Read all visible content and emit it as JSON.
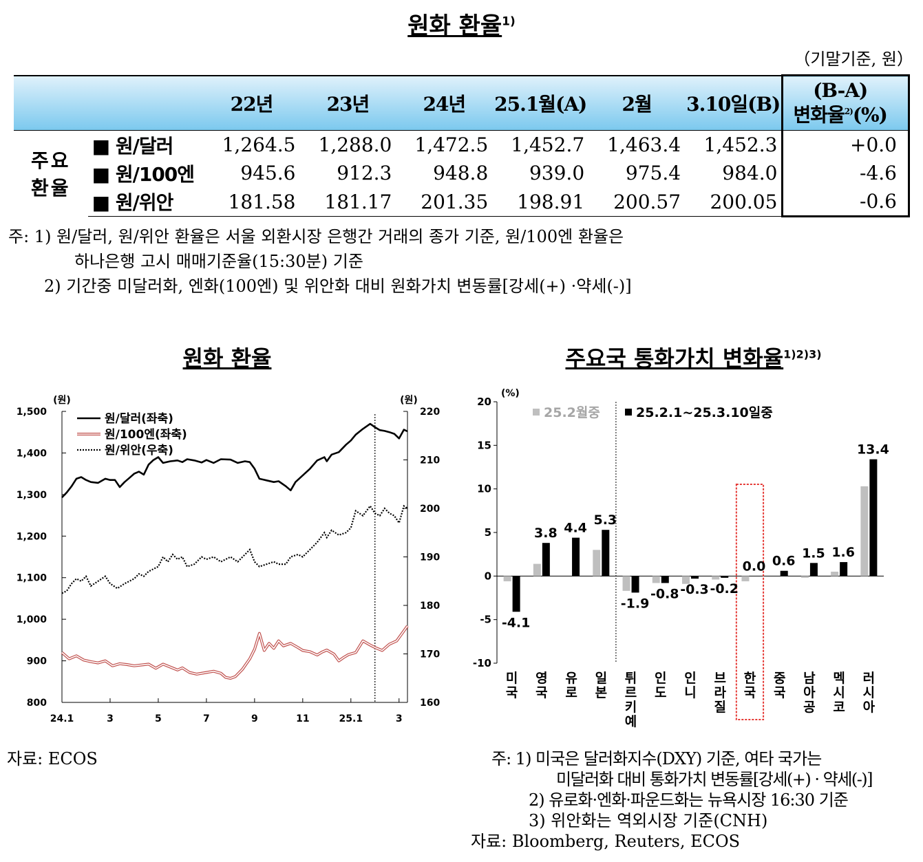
{
  "title": {
    "text": "원화 환율",
    "sup": "1)"
  },
  "unit": "（기말기준, 원）",
  "table": {
    "headers": [
      "22년",
      "23년",
      "24년",
      "25.1월(A)",
      "2월",
      "3.10일(B)"
    ],
    "change_header": [
      "(B-A)",
      "변화율",
      "2)",
      "(%)"
    ],
    "group_label": [
      "주요",
      "환율"
    ],
    "rows": [
      {
        "label": "■ 원/달러",
        "values": [
          "1,264.5",
          "1,288.0",
          "1,472.5",
          "1,452.7",
          "1,463.4",
          "1,452.3"
        ],
        "change": "+0.0"
      },
      {
        "label": "■ 원/100엔",
        "values": [
          "945.6",
          "912.3",
          "948.8",
          "939.0",
          "975.4",
          "984.0"
        ],
        "change": "-4.6"
      },
      {
        "label": "■ 원/위안",
        "values": [
          "181.58",
          "181.17",
          "201.35",
          "198.91",
          "200.57",
          "200.05"
        ],
        "change": "-0.6"
      }
    ]
  },
  "notes": [
    "주: 1) 원/달러, 원/위안 환율은 서울 외환시장 은행간 거래의 종가 기준, 원/100엔 환율은",
    "하나은행 고시 매매기준율(15:30분) 기준",
    "2) 기간중 미달러화, 엔화(100엔) 및 위안화 대비 원화가치 변동률[강세(+) ·약세(-)]"
  ],
  "left_chart": {
    "title": "원화 환율",
    "source": "자료: ECOS"
  },
  "right_chart": {
    "title": "주요국 통화가치 변화율",
    "title_sup": "1)2)3)",
    "notes": [
      "주: 1) 미국은 달러화지수(DXY) 기준, 여타 국가는",
      "미달러화 대비 통화가치 변동률[강세(+) · 약세(-)]",
      "2) 유로화·엔화·파운드화는 뉴욕시장 16:30 기준",
      "3) 위안화는 역외시장 기준(CNH)",
      "자료: Bloomberg, Reuters, ECOS"
    ]
  },
  "chart_data": [
    {
      "type": "line",
      "title": "원화 환율",
      "ylabel_left": "(원)",
      "ylabel_right": "(원)",
      "ylim_left": [
        800,
        1500
      ],
      "ylim_right": [
        160,
        220
      ],
      "yticks_left": [
        "800",
        "900",
        "1,000",
        "1,100",
        "1,200",
        "1,300",
        "1,400",
        "1,500"
      ],
      "yticks_right": [
        "160",
        "170",
        "180",
        "190",
        "200",
        "210",
        "220"
      ],
      "xticks": [
        "24.1",
        "3",
        "5",
        "7",
        "9",
        "11",
        "25.1",
        "3"
      ],
      "x_start": 0,
      "x_end": 14.35,
      "vline_at": 13,
      "grid": false,
      "legend_position": "top-left",
      "series": [
        {
          "name": "원/달러(좌축)",
          "axis": "left",
          "style": "solid",
          "color": "#000000",
          "x": [
            0,
            0.2,
            0.4,
            0.6,
            0.8,
            1.0,
            1.2,
            1.5,
            1.8,
            2.0,
            2.2,
            2.4,
            2.6,
            2.8,
            3.0,
            3.2,
            3.4,
            3.6,
            3.8,
            4.0,
            4.2,
            4.5,
            4.8,
            5.0,
            5.2,
            5.5,
            5.8,
            6.0,
            6.3,
            6.6,
            7.0,
            7.3,
            7.6,
            7.8,
            8.0,
            8.2,
            8.5,
            8.8,
            9.0,
            9.3,
            9.5,
            9.7,
            10.0,
            10.3,
            10.6,
            10.9,
            11.0,
            11.2,
            11.5,
            11.8,
            12.0,
            12.2,
            12.5,
            12.8,
            13.0,
            13.2,
            13.4,
            13.6,
            13.8,
            14.0,
            14.2,
            14.35
          ],
          "values": [
            1293,
            1305,
            1320,
            1338,
            1342,
            1335,
            1330,
            1328,
            1338,
            1335,
            1335,
            1318,
            1330,
            1340,
            1350,
            1355,
            1348,
            1372,
            1383,
            1390,
            1376,
            1380,
            1382,
            1378,
            1385,
            1382,
            1377,
            1383,
            1376,
            1385,
            1384,
            1376,
            1380,
            1378,
            1362,
            1338,
            1334,
            1330,
            1332,
            1320,
            1310,
            1330,
            1346,
            1362,
            1382,
            1390,
            1380,
            1396,
            1402,
            1420,
            1430,
            1444,
            1458,
            1470,
            1462,
            1455,
            1453,
            1450,
            1446,
            1435,
            1456,
            1452
          ]
        },
        {
          "name": "원/100엔(좌축)",
          "axis": "left",
          "style": "double",
          "color": "#c0504d",
          "x": [
            0,
            0.3,
            0.6,
            0.9,
            1.2,
            1.5,
            1.8,
            2.1,
            2.4,
            2.7,
            3.0,
            3.3,
            3.6,
            3.9,
            4.2,
            4.5,
            4.8,
            5.0,
            5.3,
            5.6,
            6.0,
            6.3,
            6.6,
            6.8,
            7.0,
            7.2,
            7.5,
            7.8,
            8.0,
            8.2,
            8.4,
            8.6,
            8.8,
            9.0,
            9.2,
            9.5,
            9.8,
            10.0,
            10.3,
            10.6,
            10.8,
            11.0,
            11.3,
            11.5,
            11.7,
            11.9,
            12.2,
            12.5,
            12.8,
            13.0,
            13.3,
            13.6,
            13.9,
            14.2,
            14.35
          ],
          "values": [
            920,
            905,
            912,
            902,
            898,
            895,
            900,
            888,
            893,
            891,
            888,
            890,
            892,
            882,
            892,
            885,
            878,
            883,
            872,
            868,
            872,
            875,
            870,
            860,
            858,
            862,
            880,
            905,
            928,
            966,
            925,
            942,
            930,
            948,
            936,
            942,
            932,
            925,
            922,
            914,
            921,
            926,
            916,
            900,
            908,
            915,
            920,
            948,
            938,
            932,
            925,
            940,
            948,
            972,
            984
          ]
        },
        {
          "name": "원/위안(우축)",
          "axis": "right",
          "style": "dotted",
          "color": "#000000",
          "x": [
            0,
            0.2,
            0.4,
            0.6,
            0.8,
            1.0,
            1.2,
            1.5,
            1.8,
            2.0,
            2.3,
            2.6,
            2.8,
            3.0,
            3.2,
            3.4,
            3.6,
            3.8,
            4.0,
            4.2,
            4.4,
            4.6,
            4.8,
            5.0,
            5.2,
            5.5,
            5.8,
            6.0,
            6.3,
            6.6,
            7.0,
            7.3,
            7.6,
            7.8,
            8.0,
            8.2,
            8.5,
            8.8,
            9.0,
            9.3,
            9.5,
            9.8,
            10.0,
            10.3,
            10.6,
            10.9,
            11.0,
            11.2,
            11.5,
            11.8,
            12.0,
            12.2,
            12.5,
            12.8,
            13.0,
            13.2,
            13.4,
            13.6,
            13.8,
            14.0,
            14.2,
            14.35
          ],
          "values": [
            182.5,
            183,
            184.5,
            185.5,
            185,
            186,
            184,
            185,
            186,
            184.5,
            183.5,
            184.5,
            185,
            185.5,
            186.5,
            186,
            187,
            187.5,
            188,
            190,
            189,
            190.5,
            189.5,
            190,
            188,
            188.5,
            190,
            189.5,
            190,
            189,
            190,
            189,
            190.5,
            191.5,
            189,
            188,
            188.5,
            189,
            188.5,
            188.5,
            190,
            190.5,
            190,
            191.5,
            193,
            195,
            194,
            195.5,
            194.5,
            195,
            196,
            199.5,
            198.5,
            200.5,
            199,
            198.5,
            200,
            199,
            198.5,
            197,
            200.5,
            200
          ]
        }
      ]
    },
    {
      "type": "bar",
      "title": "주요국 통화가치 변화율",
      "ylabel": "(%)",
      "ylim": [
        -10,
        20
      ],
      "yticks": [
        "-10",
        "-5",
        "0",
        "5",
        "10",
        "15",
        "20"
      ],
      "categories": [
        "미국",
        "영국",
        "유로",
        "일본",
        "튀르키예",
        "인도",
        "인니",
        "브라질",
        "한국",
        "중국",
        "남아공",
        "멕시코",
        "러시아"
      ],
      "legend_position": "top",
      "separator_after_index": 3,
      "highlight_category": "한국",
      "series": [
        {
          "name": "25.2월중",
          "color": "#bfbfbf",
          "values": [
            -0.6,
            1.4,
            0.0,
            3.0,
            -1.7,
            -0.8,
            -0.9,
            -0.4,
            -0.6,
            0.0,
            -0.2,
            0.5,
            10.3
          ]
        },
        {
          "name": "25.2.1~25.3.10일중",
          "color": "#000000",
          "values": [
            -4.1,
            3.8,
            4.4,
            5.3,
            -1.9,
            -0.8,
            -0.3,
            -0.2,
            0.0,
            0.6,
            1.5,
            1.6,
            13.4
          ]
        }
      ],
      "data_labels": [
        "-4.1",
        "3.8",
        "4.4",
        "5.3",
        "-1.9",
        "-0.8",
        "-0.3",
        "-0.2",
        "0.0",
        "0.6",
        "1.5",
        "1.6",
        "13.4"
      ]
    }
  ]
}
